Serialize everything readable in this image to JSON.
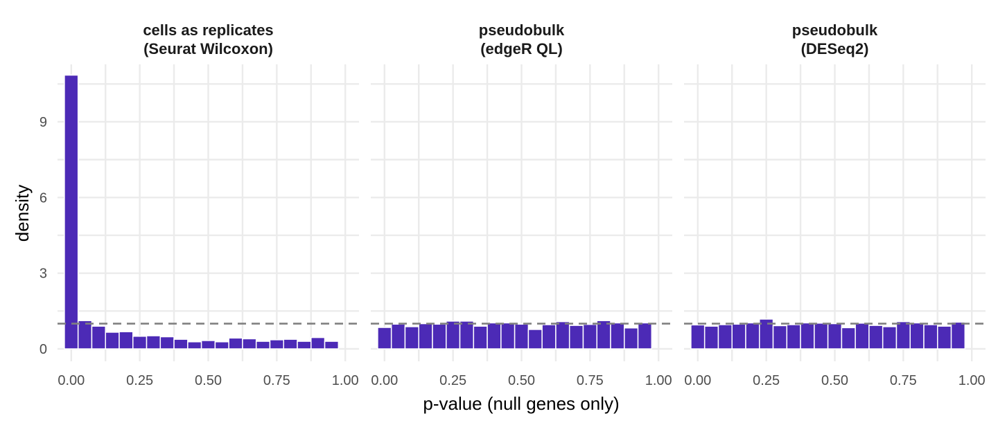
{
  "chart_data": {
    "type": "bar",
    "subtype": "faceted-histogram",
    "xlabel": "p-value (null genes only)",
    "ylabel": "density",
    "xlim": [
      0,
      1
    ],
    "ylim": [
      0,
      10.8
    ],
    "x_ticks": [
      0,
      0.25,
      0.5,
      0.75,
      1
    ],
    "x_tick_labels": [
      "0.00",
      "0.25",
      "0.50",
      "0.75",
      "1.00"
    ],
    "y_ticks": [
      0,
      3,
      6,
      9
    ],
    "y_tick_labels": [
      "0",
      "3",
      "6",
      "9"
    ],
    "bin_width": 0.05,
    "reference_line": {
      "y": 1,
      "style": "dashed"
    },
    "grid": true,
    "legend": "none",
    "colors": {
      "bar": "#4c2ab6",
      "reference_line": "#808080",
      "grid": "#ebebeb"
    },
    "panels": [
      {
        "title_lines": [
          "cells as replicates",
          "(Seurat Wilcoxon)"
        ],
        "bin_centers": [
          0.0,
          0.05,
          0.1,
          0.15,
          0.2,
          0.25,
          0.3,
          0.35,
          0.4,
          0.45,
          0.5,
          0.55,
          0.6,
          0.65,
          0.7,
          0.75,
          0.8,
          0.85,
          0.9,
          0.95,
          1.0
        ],
        "values": [
          10.85,
          1.12,
          0.9,
          0.66,
          0.68,
          0.5,
          0.52,
          0.48,
          0.38,
          0.28,
          0.33,
          0.28,
          0.43,
          0.4,
          0.3,
          0.36,
          0.38,
          0.3,
          0.45,
          0.3
        ]
      },
      {
        "title_lines": [
          "pseudobulk",
          "(edgeR QL)"
        ],
        "bin_centers": [
          0.0,
          0.05,
          0.1,
          0.15,
          0.2,
          0.25,
          0.3,
          0.35,
          0.4,
          0.45,
          0.5,
          0.55,
          0.6,
          0.65,
          0.7,
          0.75,
          0.8,
          0.85,
          0.9,
          0.95,
          1.0
        ],
        "values": [
          0.85,
          0.98,
          0.88,
          1.0,
          0.98,
          1.1,
          1.1,
          0.9,
          1.03,
          1.03,
          0.98,
          0.77,
          0.96,
          1.08,
          0.93,
          0.97,
          1.12,
          1.03,
          0.83,
          1.03
        ]
      },
      {
        "title_lines": [
          "pseudobulk",
          "(DESeq2)"
        ],
        "bin_centers": [
          0.0,
          0.05,
          0.1,
          0.15,
          0.2,
          0.25,
          0.3,
          0.35,
          0.4,
          0.45,
          0.5,
          0.55,
          0.6,
          0.65,
          0.7,
          0.75,
          0.8,
          0.85,
          0.9,
          0.95,
          1.0
        ],
        "values": [
          0.95,
          0.9,
          0.96,
          0.98,
          1.03,
          1.18,
          0.92,
          0.96,
          1.03,
          1.02,
          1.0,
          0.84,
          1.02,
          0.93,
          0.88,
          1.08,
          1.03,
          0.96,
          0.9,
          1.06
        ]
      }
    ]
  }
}
